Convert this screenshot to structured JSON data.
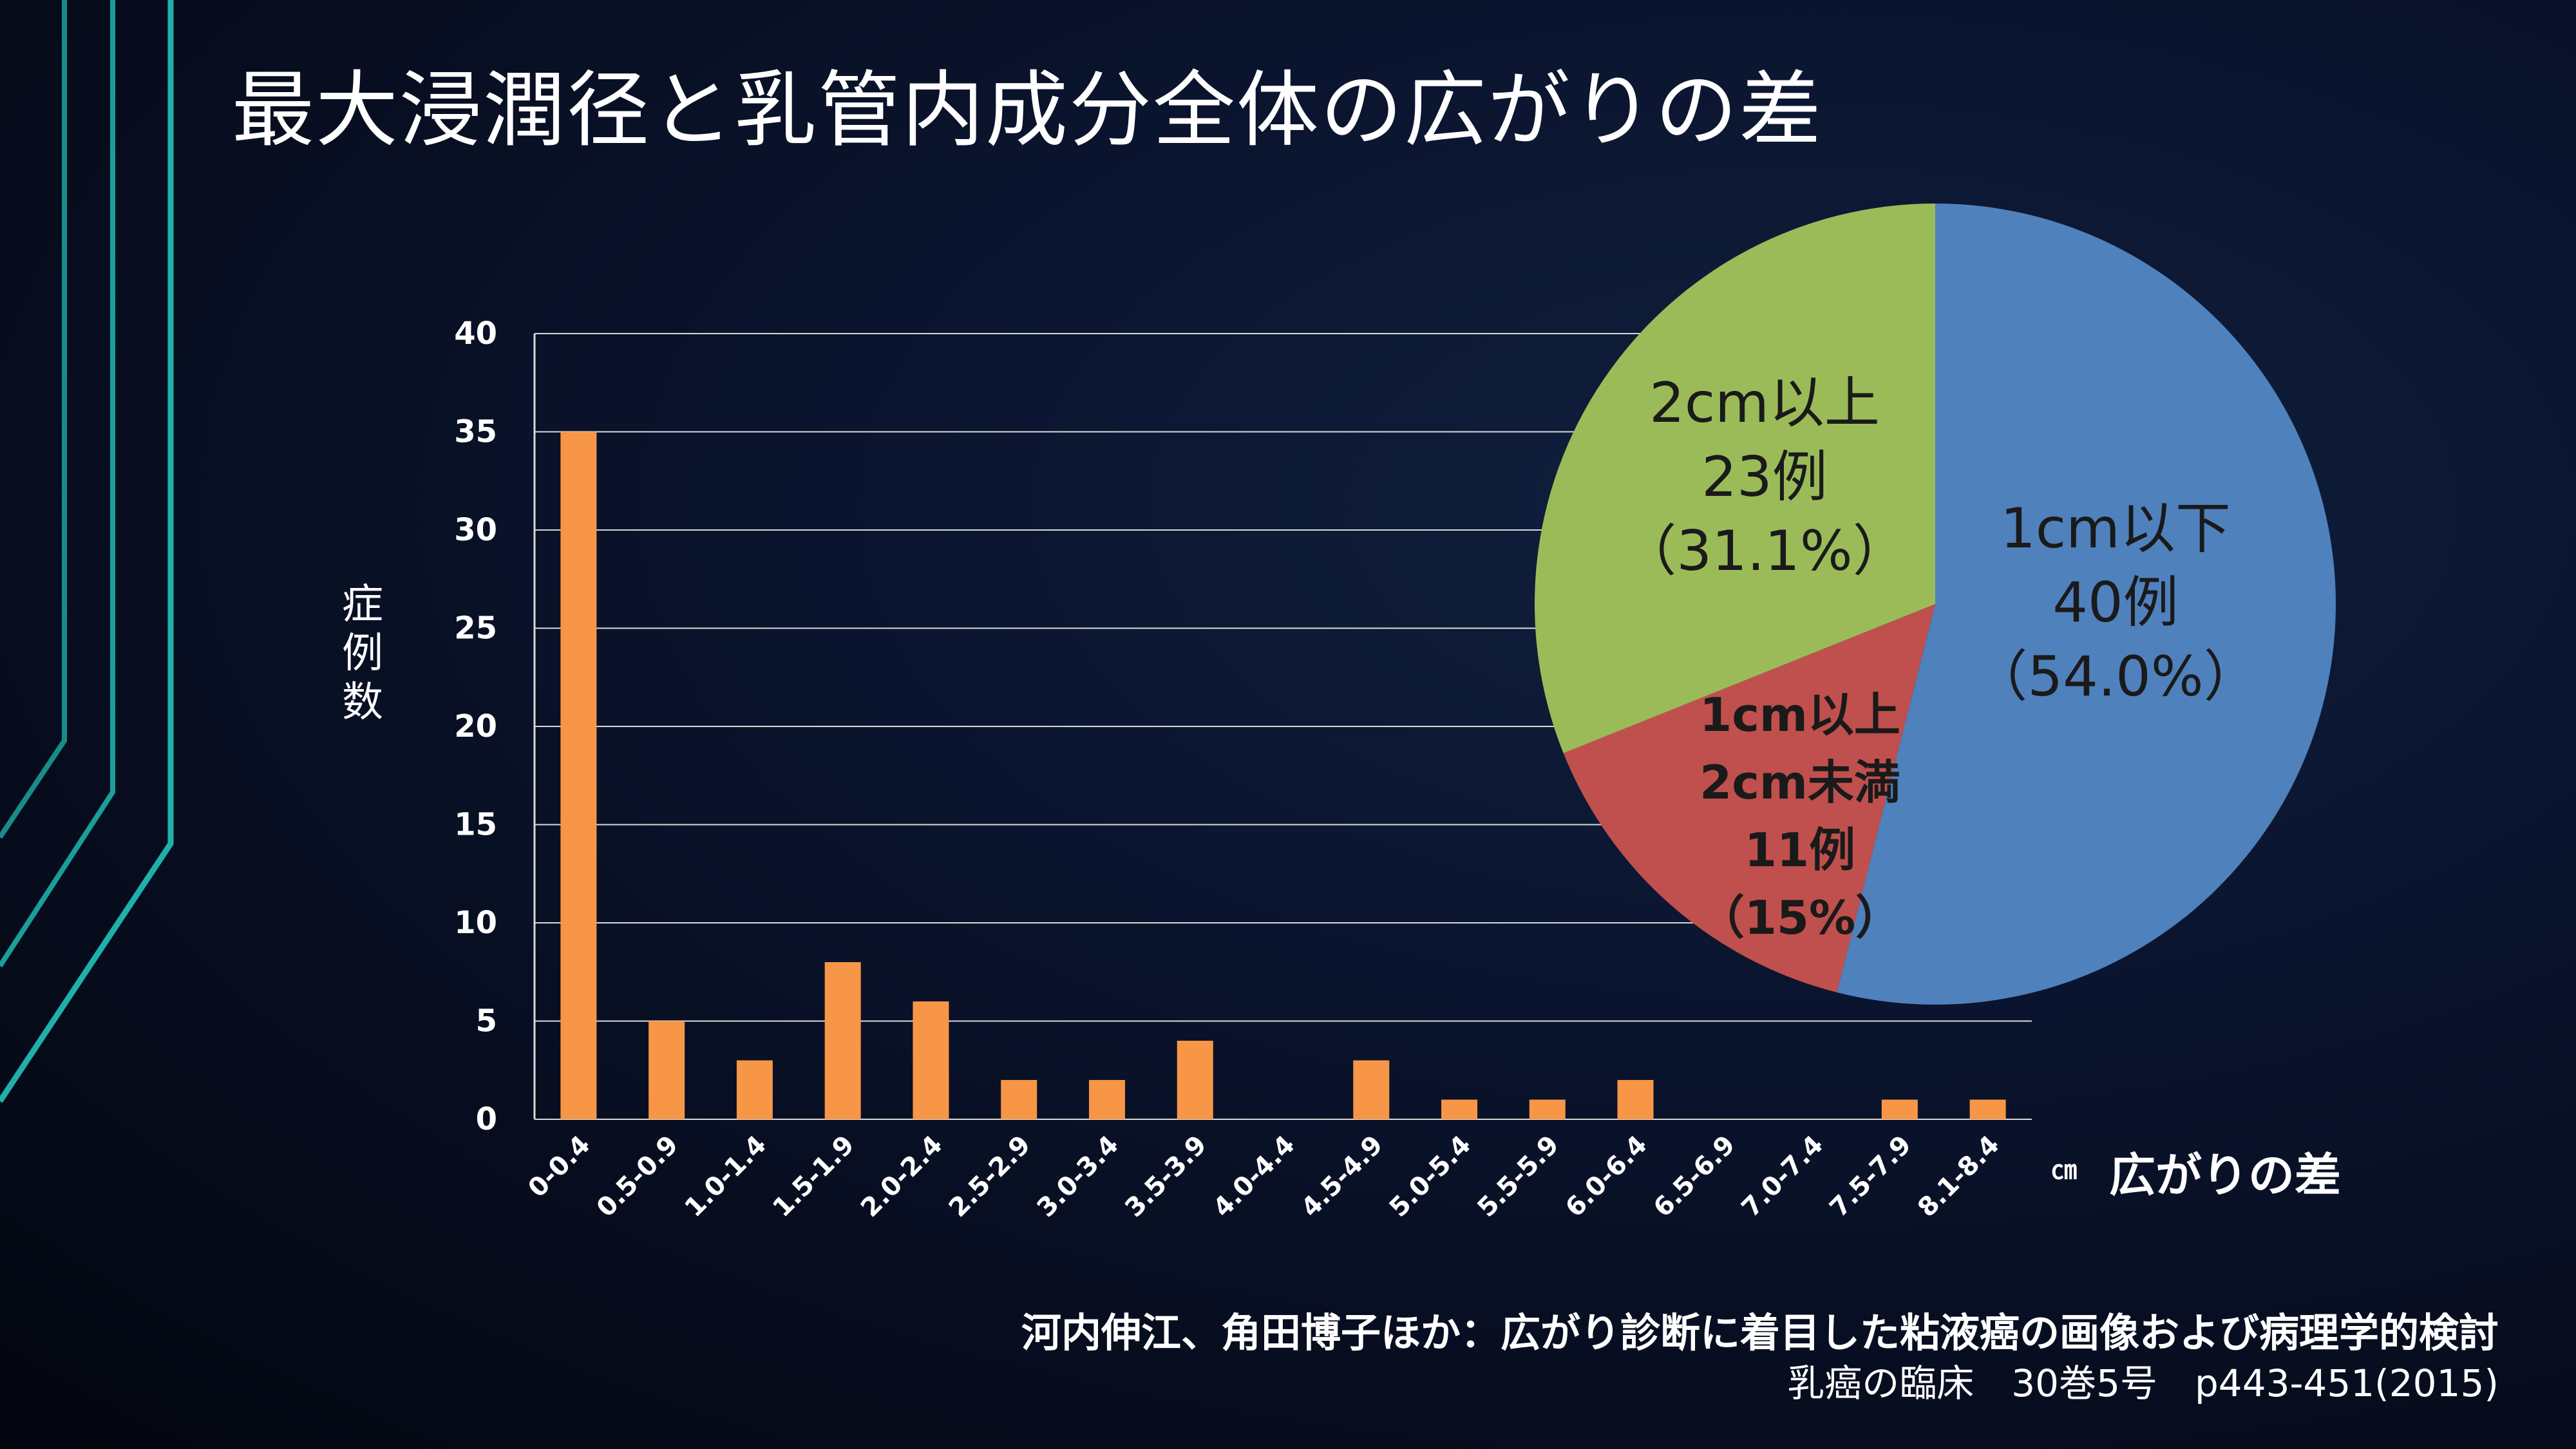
{
  "slide": {
    "title": "最大浸潤径と乳管内成分全体の広がりの差"
  },
  "citation": {
    "line1": "河内伸江、角田博子ほか：広がり診断に着目した粘液癌の画像および病理学的検討",
    "line2": "乳癌の臨床　30巻5号　p443-451(2015)"
  },
  "colors": {
    "bar": "#f79646",
    "pie_blue": "#4f81bd",
    "pie_red": "#c0504d",
    "pie_green": "#9bbb59",
    "accent_lines": "#1a9e9a"
  },
  "chart_data": [
    {
      "type": "bar",
      "categories": [
        "0-0.4",
        "0.5-0.9",
        "1.0-1.4",
        "1.5-1.9",
        "2.0-2.4",
        "2.5-2.9",
        "3.0-3.4",
        "3.5-3.9",
        "4.0-4.4",
        "4.5-4.9",
        "5.0-5.4",
        "5.5-5.9",
        "6.0-6.4",
        "6.5-6.9",
        "7.0-7.4",
        "7.5-7.9",
        "8.1-8.4"
      ],
      "values": [
        35,
        5,
        3,
        8,
        6,
        2,
        2,
        4,
        0,
        3,
        1,
        1,
        2,
        0,
        0,
        1,
        1
      ],
      "ylabel": "症例数",
      "xlabel": "広がりの差",
      "x_unit": "㎝",
      "ylim": [
        0,
        40
      ],
      "yticks": [
        0,
        5,
        10,
        15,
        20,
        25,
        30,
        35,
        40
      ],
      "grid": true
    },
    {
      "type": "pie",
      "slices": [
        {
          "line1": "1cm以下",
          "line2": "40例",
          "line3": "（54.0%）",
          "value": 54.0,
          "color": "#4f81bd"
        },
        {
          "line1": "1cm以上",
          "line2": "2cm未満",
          "line3": "11例",
          "line4": "（15%）",
          "value": 15.0,
          "color": "#c0504d"
        },
        {
          "line1": "2cm以上",
          "line2": "23例",
          "line3": "（31.1%）",
          "value": 31.1,
          "color": "#9bbb59"
        }
      ]
    }
  ]
}
